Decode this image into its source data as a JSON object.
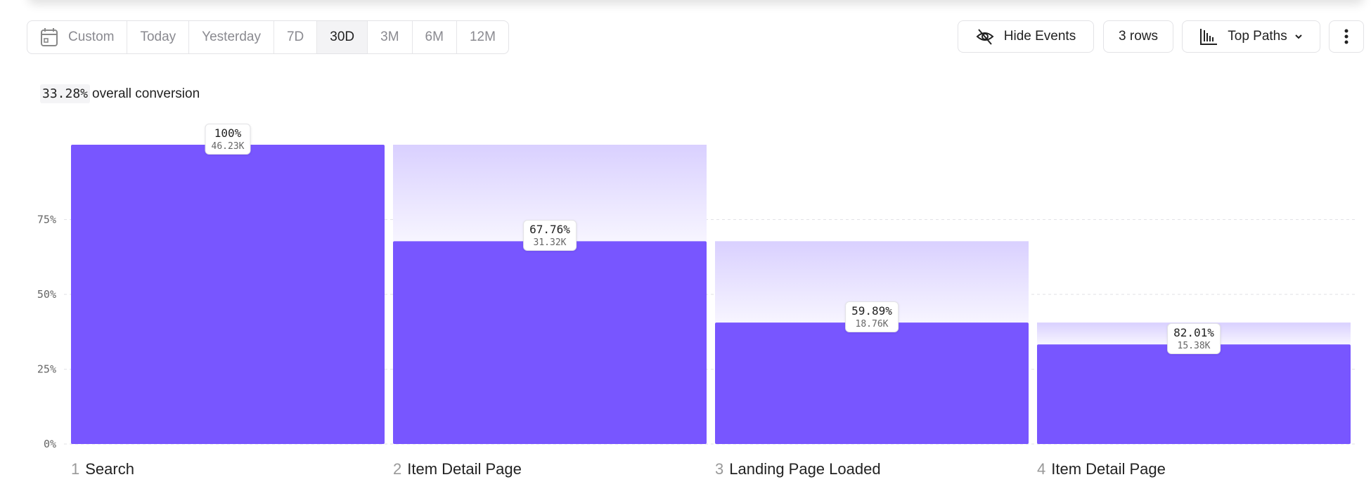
{
  "toolbar": {
    "ranges": [
      "Custom",
      "Today",
      "Yesterday",
      "7D",
      "30D",
      "3M",
      "6M",
      "12M"
    ],
    "active_range": "30D",
    "hide_events": "Hide Events",
    "rows": "3 rows",
    "view": "Top Paths"
  },
  "summary": {
    "conversion": "33.28%",
    "conversion_label": "overall conversion"
  },
  "chart_data": {
    "type": "bar",
    "bar_color": "#7856FF",
    "ylim": [
      0,
      100
    ],
    "yticks": [
      "0%",
      "25%",
      "50%",
      "75%"
    ],
    "grid": true,
    "steps": [
      {
        "index": "1",
        "name": "Search",
        "value": 100,
        "pct_label": "100%",
        "count": "46.23K"
      },
      {
        "index": "2",
        "name": "Item Detail Page",
        "value": 67.76,
        "pct_label": "67.76%",
        "count": "31.32K"
      },
      {
        "index": "3",
        "name": "Landing Page Loaded",
        "value": 40.58,
        "pct_label": "59.89%",
        "count": "18.76K"
      },
      {
        "index": "4",
        "name": "Item Detail Page",
        "value": 33.27,
        "pct_label": "82.01%",
        "count": "15.38K"
      }
    ]
  }
}
